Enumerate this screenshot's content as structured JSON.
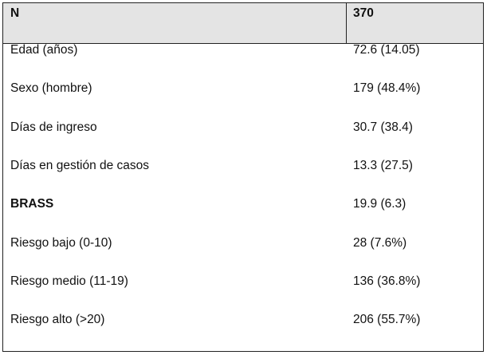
{
  "table": {
    "header": [
      "N",
      "370"
    ],
    "rows": [
      [
        "Edad (años)",
        "72.6 (14.05)"
      ],
      [
        "Sexo (hombre)",
        "179 (48.4%)"
      ],
      [
        "Días de ingreso",
        "30.7 (38.4)"
      ],
      [
        "Días en gestión de casos",
        "13.3 (27.5)"
      ],
      [
        "BRASS",
        "19.9 (6.3)"
      ],
      [
        "Riesgo bajo (0-10)",
        "28 (7.6%)"
      ],
      [
        "Riesgo medio (11-19)",
        "136 (36.8%)"
      ],
      [
        "Riesgo alto (>20)",
        "206 (55.7%)"
      ]
    ]
  }
}
